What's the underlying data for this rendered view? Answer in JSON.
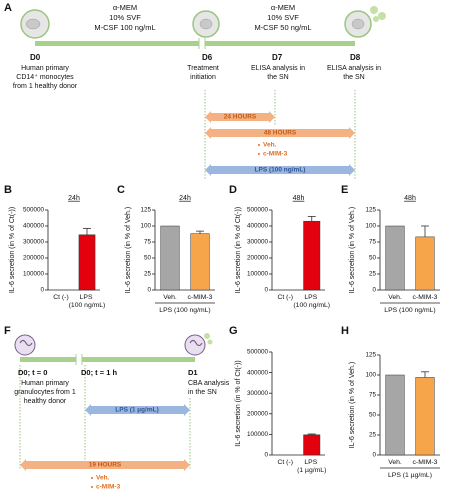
{
  "panel_a": {
    "label": "A",
    "medium_1": [
      "α-MEM",
      "10% SVF",
      "M-CSF 100 ng/mL"
    ],
    "medium_2": [
      "α-MEM",
      "10% SVF",
      "M-CSF 50 ng/mL"
    ],
    "d0": {
      "day": "D0",
      "lines": [
        "Human primary",
        "CD14⁺ monocytes",
        "from 1 healthy donor"
      ]
    },
    "d6": {
      "day": "D6",
      "lines": [
        "Treatment",
        "initiation"
      ]
    },
    "d7": {
      "day": "D7",
      "lines": [
        "ELISA analysis in",
        "the SN"
      ]
    },
    "d8": {
      "day": "D8",
      "lines": [
        "ELISA analysis in",
        "the SN"
      ]
    },
    "arrow_24": "24 HOURS",
    "arrow_48": "48 HOURS",
    "treatments": [
      "Veh.",
      "c-MIM-3"
    ],
    "lps": "LPS (100 ng/mL)"
  },
  "panel_f": {
    "label": "F",
    "t0": {
      "day": "D0; t = 0",
      "lines": [
        "Human primary",
        "granulocytes from 1",
        "healthy donor"
      ]
    },
    "t1": {
      "day": "D0; t = 1 h"
    },
    "d1": {
      "day": "D1",
      "lines": [
        "CBA analysis",
        "in the SN"
      ]
    },
    "lps": "LPS (1 µg/mL)",
    "arrow_19": "19 HOURS",
    "treatments": [
      "Veh.",
      "c-MIM-3"
    ]
  },
  "chart_data": [
    {
      "type": "bar",
      "panel": "B",
      "title": "24h",
      "y_label": "IL-6 secretion (in % of Ct(-))",
      "categories": [
        "Ct (-)",
        "LPS (100 ng/mL)"
      ],
      "values": [
        0,
        345000
      ],
      "errors": [
        null,
        40000
      ],
      "colors": [
        "#e3000f",
        "#e3000f"
      ],
      "ylim": [
        0,
        500000
      ],
      "yticks": [
        0,
        100000,
        200000,
        300000,
        400000,
        500000
      ]
    },
    {
      "type": "bar",
      "panel": "C",
      "title": "24h",
      "y_label": "IL-6 secretion (in % of Veh.)",
      "categories": [
        "Veh.",
        "c-MIM-3"
      ],
      "values": [
        100,
        88
      ],
      "errors": [
        null,
        4
      ],
      "group_label": "LPS (100 ng/mL)",
      "colors": [
        "#a6a6a6",
        "#f7a54a"
      ],
      "ylim": [
        0,
        125
      ],
      "yticks": [
        0,
        25,
        50,
        75,
        100,
        125
      ]
    },
    {
      "type": "bar",
      "panel": "D",
      "title": "48h",
      "y_label": "IL-6 secretion (in % of Ct(-))",
      "categories": [
        "Ct (-)",
        "LPS (100 ng/mL)"
      ],
      "values": [
        0,
        430000
      ],
      "errors": [
        null,
        30000
      ],
      "colors": [
        "#e3000f",
        "#e3000f"
      ],
      "ylim": [
        0,
        500000
      ],
      "yticks": [
        0,
        100000,
        200000,
        300000,
        400000,
        500000
      ]
    },
    {
      "type": "bar",
      "panel": "E",
      "title": "48h",
      "y_label": "IL-6 secretion (in % of Veh.)",
      "categories": [
        "Veh.",
        "c-MIM-3"
      ],
      "values": [
        100,
        83
      ],
      "errors": [
        null,
        17
      ],
      "group_label": "LPS (100 ng/mL)",
      "colors": [
        "#a6a6a6",
        "#f7a54a"
      ],
      "ylim": [
        0,
        125
      ],
      "yticks": [
        0,
        25,
        50,
        75,
        100,
        125
      ]
    },
    {
      "type": "bar",
      "panel": "G",
      "y_label": "IL-6 secretion (in % of Ct(-))",
      "categories": [
        "Ct (-)",
        "LPS (1 µg/mL)"
      ],
      "values": [
        0,
        98000
      ],
      "errors": [
        null,
        4000
      ],
      "colors": [
        "#e3000f",
        "#e3000f"
      ],
      "ylim": [
        0,
        500000
      ],
      "yticks": [
        0,
        100000,
        200000,
        300000,
        400000,
        500000
      ]
    },
    {
      "type": "bar",
      "panel": "H",
      "y_label": "IL-6 secretion (in % of Veh.)",
      "categories": [
        "Veh.",
        "c-MIM-3"
      ],
      "values": [
        100,
        97
      ],
      "errors": [
        null,
        7
      ],
      "group_label": "LPS (1 µg/mL)",
      "colors": [
        "#a6a6a6",
        "#f7a54a"
      ],
      "ylim": [
        0,
        125
      ],
      "yticks": [
        0,
        25,
        50,
        75,
        100,
        125
      ]
    }
  ]
}
